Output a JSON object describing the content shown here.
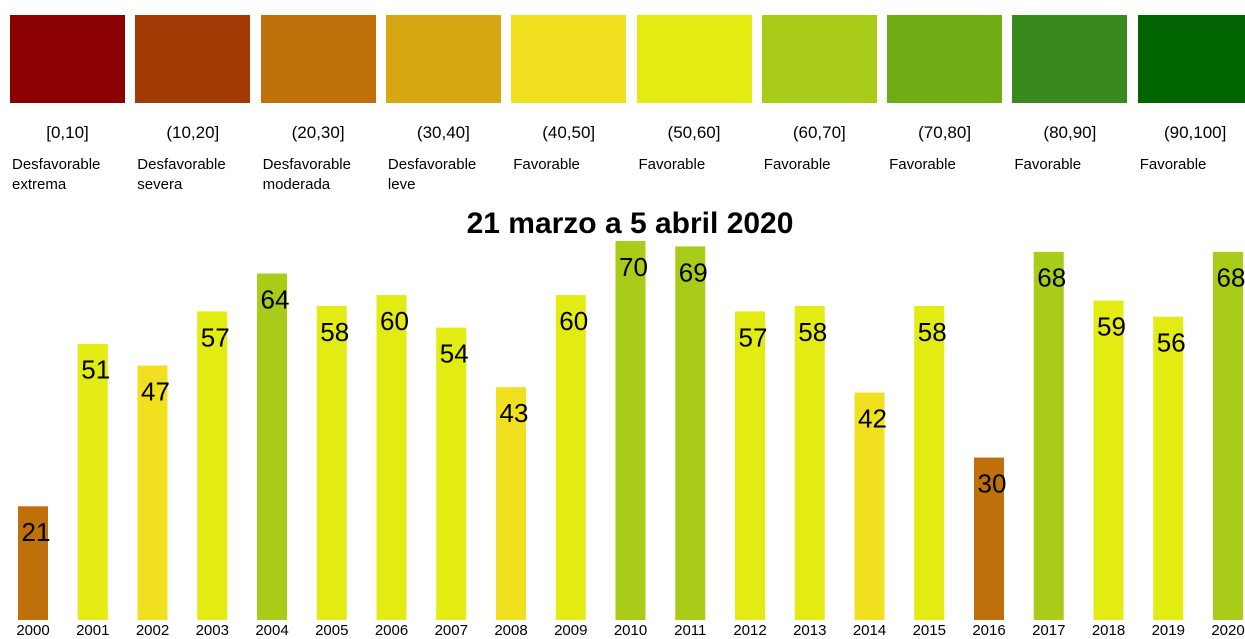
{
  "legend": [
    {
      "range": "[0,10]",
      "label": "Desfavorable extrema",
      "color": "#8b0000"
    },
    {
      "range": "(10,20]",
      "label": "Desfavorable severa",
      "color": "#a33a06"
    },
    {
      "range": "(20,30]",
      "label": "Desfavorable moderada",
      "color": "#c0700a"
    },
    {
      "range": "(30,40]",
      "label": "Desfavorable leve",
      "color": "#d8a814"
    },
    {
      "range": "(40,50]",
      "label": "Favorable",
      "color": "#f0e020"
    },
    {
      "range": "(50,60]",
      "label": "Favorable",
      "color": "#e2ec12"
    },
    {
      "range": "(60,70]",
      "label": "Favorable",
      "color": "#a8cc18"
    },
    {
      "range": "(70,80]",
      "label": "Favorable",
      "color": "#70ac14"
    },
    {
      "range": "(80,90]",
      "label": "Favorable",
      "color": "#388a1c"
    },
    {
      "range": "(90,100]",
      "label": "Favorable",
      "color": "#006400"
    }
  ],
  "chart_data": {
    "type": "bar",
    "title": "21 marzo a 5 abril 2020",
    "categories": [
      "2000",
      "2001",
      "2002",
      "2003",
      "2004",
      "2005",
      "2006",
      "2007",
      "2008",
      "2009",
      "2010",
      "2011",
      "2012",
      "2013",
      "2014",
      "2015",
      "2016",
      "2017",
      "2018",
      "2019",
      "2020"
    ],
    "values": [
      21,
      51,
      47,
      57,
      64,
      58,
      60,
      54,
      43,
      60,
      70,
      69,
      57,
      58,
      42,
      58,
      30,
      68,
      59,
      56,
      68
    ],
    "colors": [
      "#c0700a",
      "#e2ec12",
      "#f0e020",
      "#e2ec12",
      "#a8cc18",
      "#e2ec12",
      "#e2ec12",
      "#e2ec12",
      "#f0e020",
      "#e2ec12",
      "#a8cc18",
      "#a8cc18",
      "#e2ec12",
      "#e2ec12",
      "#f0e020",
      "#e2ec12",
      "#c0700a",
      "#a8cc18",
      "#e2ec12",
      "#e2ec12",
      "#a8cc18"
    ]
  }
}
